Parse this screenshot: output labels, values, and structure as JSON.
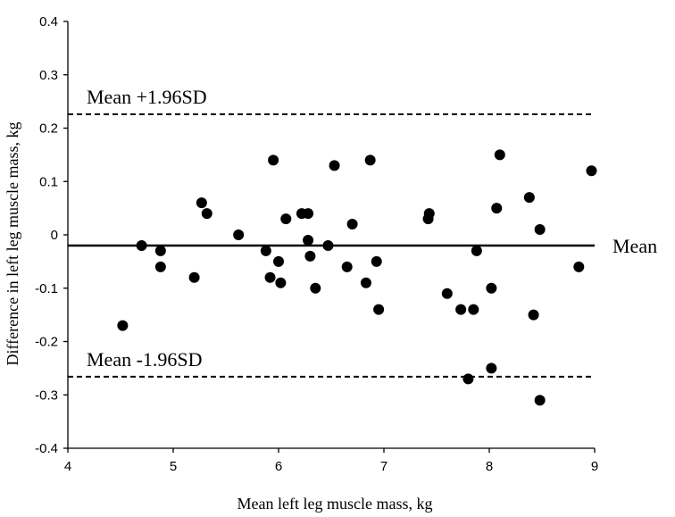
{
  "chart_data": {
    "type": "scatter",
    "title": "",
    "xlabel": "Mean left leg muscle mass, kg",
    "ylabel": "Difference in left leg muscle mass, kg",
    "xlim": [
      4,
      9
    ],
    "ylim": [
      -0.4,
      0.4
    ],
    "x_ticks": [
      "4",
      "5",
      "6",
      "7",
      "8",
      "9"
    ],
    "y_ticks": [
      "-0.4",
      "-0.3",
      "-0.2",
      "-0.1",
      "0",
      "0.1",
      "0.2",
      "0.3",
      "0.4"
    ],
    "grid": false,
    "series": [
      {
        "points": [
          {
            "x": 4.52,
            "y": -0.17
          },
          {
            "x": 4.7,
            "y": -0.02
          },
          {
            "x": 4.88,
            "y": -0.03
          },
          {
            "x": 4.88,
            "y": -0.06
          },
          {
            "x": 5.2,
            "y": -0.08
          },
          {
            "x": 5.27,
            "y": 0.06
          },
          {
            "x": 5.32,
            "y": 0.04
          },
          {
            "x": 5.62,
            "y": 0.0
          },
          {
            "x": 5.88,
            "y": -0.03
          },
          {
            "x": 5.92,
            "y": -0.08
          },
          {
            "x": 5.95,
            "y": 0.14
          },
          {
            "x": 6.0,
            "y": -0.05
          },
          {
            "x": 6.02,
            "y": -0.09
          },
          {
            "x": 6.07,
            "y": 0.03
          },
          {
            "x": 6.22,
            "y": 0.04
          },
          {
            "x": 6.28,
            "y": 0.04
          },
          {
            "x": 6.28,
            "y": -0.01
          },
          {
            "x": 6.3,
            "y": -0.04
          },
          {
            "x": 6.35,
            "y": -0.1
          },
          {
            "x": 6.47,
            "y": -0.02
          },
          {
            "x": 6.53,
            "y": 0.13
          },
          {
            "x": 6.65,
            "y": -0.06
          },
          {
            "x": 6.7,
            "y": 0.02
          },
          {
            "x": 6.83,
            "y": -0.09
          },
          {
            "x": 6.87,
            "y": 0.14
          },
          {
            "x": 6.93,
            "y": -0.05
          },
          {
            "x": 6.95,
            "y": -0.14
          },
          {
            "x": 7.42,
            "y": 0.03
          },
          {
            "x": 7.43,
            "y": 0.04
          },
          {
            "x": 7.6,
            "y": -0.11
          },
          {
            "x": 7.73,
            "y": -0.14
          },
          {
            "x": 7.8,
            "y": -0.27
          },
          {
            "x": 7.85,
            "y": -0.14
          },
          {
            "x": 7.88,
            "y": -0.03
          },
          {
            "x": 8.02,
            "y": -0.1
          },
          {
            "x": 8.02,
            "y": -0.25
          },
          {
            "x": 8.07,
            "y": 0.05
          },
          {
            "x": 8.1,
            "y": 0.15
          },
          {
            "x": 8.38,
            "y": 0.07
          },
          {
            "x": 8.42,
            "y": -0.15
          },
          {
            "x": 8.48,
            "y": 0.01
          },
          {
            "x": 8.48,
            "y": -0.31
          },
          {
            "x": 8.85,
            "y": -0.06
          },
          {
            "x": 8.97,
            "y": 0.12
          }
        ]
      }
    ],
    "reference_lines": [
      {
        "y": 0.226,
        "style": "dashed",
        "label": "Mean +1.96SD"
      },
      {
        "y": -0.02,
        "style": "solid",
        "label": "Mean"
      },
      {
        "y": -0.266,
        "style": "dashed",
        "label": "Mean -1.96SD"
      }
    ]
  }
}
